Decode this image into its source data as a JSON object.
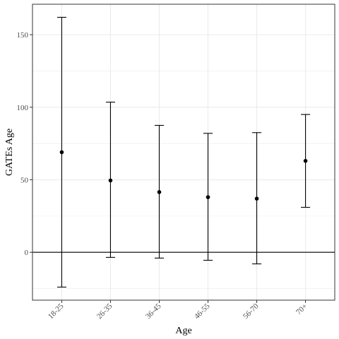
{
  "chart_data": {
    "type": "errorbar",
    "title": "",
    "xlabel": "Age",
    "ylabel": "GATEs Age",
    "categories": [
      "18-25",
      "26-35",
      "36-45",
      "46-55",
      "56-70",
      "70+"
    ],
    "estimates": [
      69,
      49.5,
      41.5,
      38,
      37,
      63
    ],
    "lower": [
      -24,
      -3.5,
      -4,
      -5.5,
      -8,
      31
    ],
    "upper": [
      162,
      103.5,
      87.5,
      82,
      82.5,
      95
    ],
    "ylim": [
      -33,
      171
    ],
    "yticks": [
      0,
      50,
      100,
      150
    ],
    "reference_line_y": 0,
    "grid": true,
    "legend": "none",
    "colors": {
      "points": "#000000",
      "grid": "#ebebeb",
      "panel_border": "#333333"
    }
  }
}
